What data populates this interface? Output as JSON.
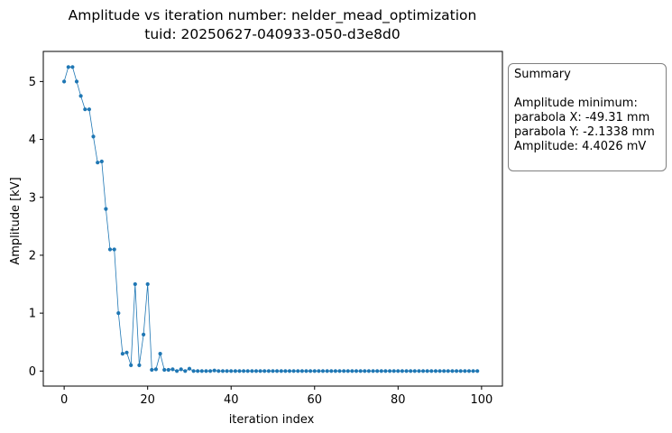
{
  "chart_data": {
    "type": "line",
    "title": "Amplitude vs iteration number: nelder_mead_optimization",
    "subtitle": "tuid: 20250627-040933-050-d3e8d0",
    "xlabel": "iteration index",
    "ylabel": "Amplitude [kV]",
    "xlim": [
      -5,
      105
    ],
    "ylim": [
      -0.26,
      5.52
    ],
    "xticks": [
      0,
      20,
      40,
      60,
      80,
      100
    ],
    "yticks": [
      0,
      1,
      2,
      3,
      4,
      5
    ],
    "grid": false,
    "color": "#1f77b4",
    "series": [
      {
        "x": [
          0,
          1,
          2,
          3,
          4,
          5,
          6,
          7,
          8,
          9,
          10,
          11,
          12,
          13,
          14,
          15,
          16,
          17,
          18,
          19,
          20,
          21,
          22,
          23,
          24,
          25,
          26,
          27,
          28,
          29,
          30,
          31,
          32,
          33,
          34,
          35,
          36,
          37,
          38,
          39,
          40,
          41,
          42,
          43,
          44,
          45,
          46,
          47,
          48,
          49,
          50,
          51,
          52,
          53,
          54,
          55,
          56,
          57,
          58,
          59,
          60,
          61,
          62,
          63,
          64,
          65,
          66,
          67,
          68,
          69,
          70,
          71,
          72,
          73,
          74,
          75,
          76,
          77,
          78,
          79,
          80,
          81,
          82,
          83,
          84,
          85,
          86,
          87,
          88,
          89,
          90,
          91,
          92,
          93,
          94,
          95,
          96,
          97,
          98,
          99
        ],
        "y": [
          5.0,
          5.25,
          5.25,
          5.0,
          4.75,
          4.52,
          4.52,
          4.05,
          3.6,
          3.62,
          2.8,
          2.1,
          2.1,
          1.0,
          0.3,
          0.32,
          0.1,
          1.5,
          0.1,
          0.63,
          1.5,
          0.02,
          0.03,
          0.3,
          0.02,
          0.02,
          0.03,
          0.0,
          0.03,
          0.0,
          0.04,
          0.0,
          0.0,
          0.0,
          0.0,
          0.0,
          0.01,
          0.0,
          0.0,
          0.0,
          0.0,
          0.0,
          0.0,
          0.0,
          0.0,
          0.0,
          0.0,
          0.0,
          0.0,
          0.0,
          0.0,
          0.0,
          0.0,
          0.0,
          0.0,
          0.0,
          0.0,
          0.0,
          0.0,
          0.0,
          0.0,
          0.0,
          0.0,
          0.0,
          0.0,
          0.0,
          0.0,
          0.0,
          0.0,
          0.0,
          0.0,
          0.0,
          0.0,
          0.0,
          0.0,
          0.0,
          0.0,
          0.0,
          0.0,
          0.0,
          0.0,
          0.0,
          0.0,
          0.0,
          0.0,
          0.0,
          0.0,
          0.0,
          0.0,
          0.0,
          0.0,
          0.0,
          0.0,
          0.0,
          0.0,
          0.0,
          0.0,
          0.0,
          0.0,
          0.0
        ]
      }
    ]
  },
  "summary": {
    "heading": "Summary",
    "line1": "Amplitude minimum:",
    "line2": "parabola X: -49.31 mm",
    "line3": "parabola Y: -2.1338 mm",
    "line4": "Amplitude: 4.4026 mV"
  }
}
